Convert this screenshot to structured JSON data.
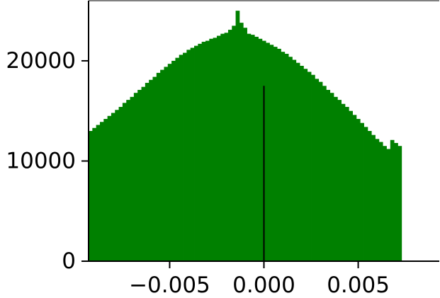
{
  "chart_data": {
    "type": "bar",
    "title": "",
    "xlabel": "",
    "ylabel": "",
    "color": "#008000",
    "xlim": [
      -0.0093,
      0.0093
    ],
    "ylim": [
      0,
      26000
    ],
    "xticks": [
      {
        "value": -0.005,
        "label": "−0.005"
      },
      {
        "value": 0.0,
        "label": "0.000"
      },
      {
        "value": 0.005,
        "label": "0.005"
      }
    ],
    "yticks": [
      {
        "value": 0,
        "label": "0"
      },
      {
        "value": 10000,
        "label": "10000"
      },
      {
        "value": 20000,
        "label": "20000"
      }
    ],
    "vline": {
      "x": 0.0,
      "y_top": 17500,
      "color": "#000000"
    },
    "bins": {
      "start": -0.0093,
      "width": 0.0002
    },
    "values": [
      13000,
      13300,
      13600,
      13900,
      14200,
      14500,
      14800,
      15100,
      15400,
      15800,
      16100,
      16400,
      16800,
      17100,
      17400,
      17800,
      18100,
      18400,
      18800,
      19100,
      19400,
      19700,
      20000,
      20300,
      20600,
      20800,
      21100,
      21300,
      21500,
      21700,
      21900,
      22000,
      22200,
      22300,
      22500,
      22700,
      22800,
      23100,
      23500,
      25000,
      23800,
      23300,
      22700,
      22600,
      22400,
      22200,
      22000,
      21800,
      21600,
      21400,
      21200,
      20900,
      20700,
      20400,
      20100,
      19800,
      19500,
      19200,
      18900,
      18600,
      18200,
      17900,
      17500,
      17100,
      16800,
      16400,
      16100,
      15700,
      15400,
      15000,
      14600,
      14200,
      13800,
      13400,
      13000,
      12600,
      12200,
      11900,
      11500,
      11200,
      12100,
      11800,
      11500
    ]
  }
}
